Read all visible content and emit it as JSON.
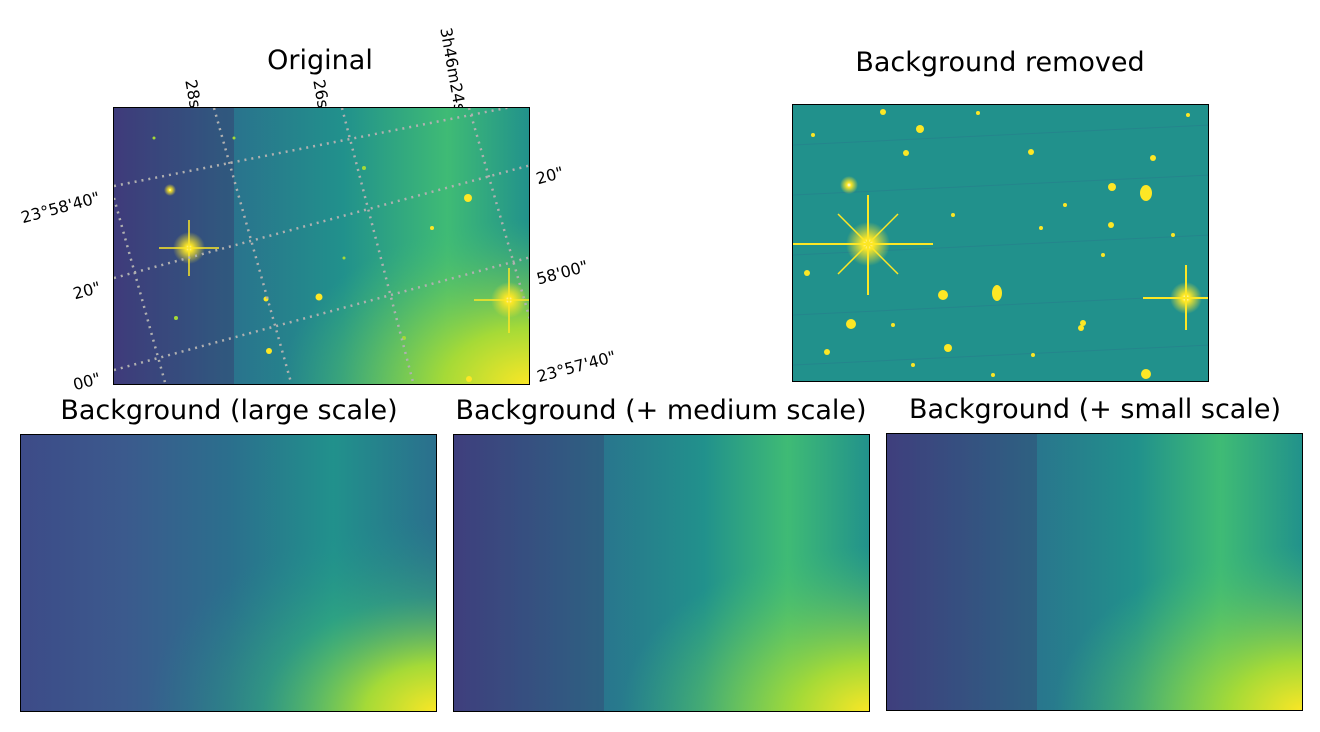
{
  "panels": {
    "original": {
      "title": "Original",
      "ra_ticks": [
        "28s",
        "26s",
        "3h46m24s"
      ],
      "dec_ticks_left": [
        "23°58'40\"",
        "20\"",
        "00\""
      ],
      "dec_ticks_right": [
        "20\"",
        "58'00\"",
        "23°57'40\""
      ]
    },
    "background_removed": {
      "title": "Background removed"
    },
    "background_large": {
      "title": "Background (large scale)"
    },
    "background_medium": {
      "title": "Background (+ medium scale)"
    },
    "background_small": {
      "title": "Background (+ small scale)"
    }
  },
  "colormap": {
    "dark": "#440d54",
    "indigo": "#3d4b88",
    "blue": "#2b6f8d",
    "teal": "#21918c",
    "green": "#3fbb75",
    "lime": "#a5da37",
    "yellow": "#fde725"
  },
  "grid_color": "#b0b0b0"
}
